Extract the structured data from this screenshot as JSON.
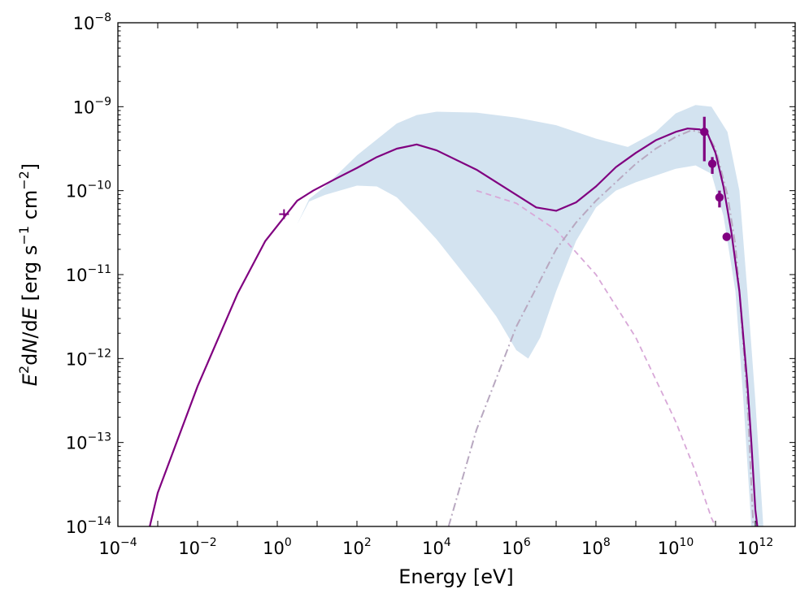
{
  "chart_data": {
    "type": "line",
    "title": "",
    "xlabel": "Energy [eV]",
    "ylabel": {
      "parts": [
        "E",
        "2",
        "d",
        "N",
        "/d",
        "E",
        " [erg s",
        "−1",
        " cm",
        "−2",
        "]"
      ]
    },
    "x_scale": "log",
    "y_scale": "log",
    "xlim_log10": [
      -4,
      13
    ],
    "ylim_log10": [
      -14,
      -8
    ],
    "x_ticks": [
      {
        "base": "10",
        "exp": "−4",
        "log10": -4
      },
      {
        "base": "10",
        "exp": "−2",
        "log10": -2
      },
      {
        "base": "10",
        "exp": "0",
        "log10": 0
      },
      {
        "base": "10",
        "exp": "2",
        "log10": 2
      },
      {
        "base": "10",
        "exp": "4",
        "log10": 4
      },
      {
        "base": "10",
        "exp": "6",
        "log10": 6
      },
      {
        "base": "10",
        "exp": "8",
        "log10": 8
      },
      {
        "base": "10",
        "exp": "10",
        "log10": 10
      },
      {
        "base": "10",
        "exp": "12",
        "log10": 12
      }
    ],
    "y_ticks": [
      {
        "base": "10",
        "exp": "−14",
        "log10": -14
      },
      {
        "base": "10",
        "exp": "−13",
        "log10": -13
      },
      {
        "base": "10",
        "exp": "−12",
        "log10": -12
      },
      {
        "base": "10",
        "exp": "−11",
        "log10": -11
      },
      {
        "base": "10",
        "exp": "−10",
        "log10": -10
      },
      {
        "base": "10",
        "exp": "−9",
        "log10": -9
      },
      {
        "base": "10",
        "exp": "−8",
        "log10": -8
      }
    ],
    "legend": "none",
    "grid": false,
    "colors": {
      "model": "#800080",
      "band": "#b5d0e6",
      "component": "#d8a8d8",
      "component_ic": "#b8a8c0"
    },
    "series": [
      {
        "name": "uncertainty band",
        "kind": "band",
        "upper_log10": [
          [
            0.5,
            -10.4
          ],
          [
            0.8,
            -10.1
          ],
          [
            1.2,
            -9.95
          ],
          [
            2.0,
            -9.58
          ],
          [
            3.0,
            -9.2
          ],
          [
            3.5,
            -9.1
          ],
          [
            4.0,
            -9.06
          ],
          [
            5.0,
            -9.07
          ],
          [
            6.0,
            -9.13
          ],
          [
            7.0,
            -9.22
          ],
          [
            8.0,
            -9.38
          ],
          [
            8.8,
            -9.48
          ],
          [
            9.5,
            -9.3
          ],
          [
            10.0,
            -9.08
          ],
          [
            10.5,
            -8.98
          ],
          [
            10.9,
            -9.0
          ],
          [
            11.3,
            -9.3
          ],
          [
            11.6,
            -10.0
          ],
          [
            11.8,
            -11.2
          ],
          [
            12.0,
            -12.5
          ],
          [
            12.2,
            -14.0
          ]
        ],
        "lower_log10": [
          [
            0.5,
            -10.4
          ],
          [
            0.8,
            -10.13
          ],
          [
            1.2,
            -10.05
          ],
          [
            2.0,
            -9.94
          ],
          [
            2.5,
            -9.95
          ],
          [
            3.0,
            -10.08
          ],
          [
            3.5,
            -10.32
          ],
          [
            4.0,
            -10.58
          ],
          [
            4.5,
            -10.88
          ],
          [
            5.0,
            -11.18
          ],
          [
            5.5,
            -11.5
          ],
          [
            6.0,
            -11.9
          ],
          [
            6.3,
            -12.0
          ],
          [
            6.6,
            -11.75
          ],
          [
            7.0,
            -11.2
          ],
          [
            7.5,
            -10.6
          ],
          [
            8.0,
            -10.2
          ],
          [
            8.5,
            -10.0
          ],
          [
            9.0,
            -9.9
          ],
          [
            9.5,
            -9.82
          ],
          [
            10.0,
            -9.74
          ],
          [
            10.5,
            -9.7
          ],
          [
            10.9,
            -9.8
          ],
          [
            11.2,
            -10.3
          ],
          [
            11.5,
            -11.2
          ],
          [
            11.7,
            -12.5
          ],
          [
            11.9,
            -14.0
          ]
        ]
      },
      {
        "name": "synchrotron component",
        "kind": "dashed",
        "points_log10": [
          [
            5.0,
            -10.0
          ],
          [
            6.0,
            -10.15
          ],
          [
            7.0,
            -10.47
          ],
          [
            8.0,
            -11.0
          ],
          [
            9.0,
            -11.75
          ],
          [
            10.0,
            -12.75
          ],
          [
            10.5,
            -13.35
          ],
          [
            10.9,
            -13.9
          ],
          [
            11.0,
            -14.0
          ]
        ]
      },
      {
        "name": "inverse Compton component",
        "kind": "dashdot",
        "points_log10": [
          [
            4.3,
            -14.0
          ],
          [
            5.0,
            -12.85
          ],
          [
            6.0,
            -11.62
          ],
          [
            7.0,
            -10.7
          ],
          [
            7.5,
            -10.38
          ],
          [
            8.0,
            -10.12
          ],
          [
            8.5,
            -9.9
          ],
          [
            9.0,
            -9.68
          ],
          [
            9.5,
            -9.5
          ],
          [
            10.0,
            -9.36
          ],
          [
            10.4,
            -9.28
          ],
          [
            10.8,
            -9.33
          ],
          [
            11.0,
            -9.5
          ],
          [
            11.3,
            -10.05
          ],
          [
            11.5,
            -10.65
          ],
          [
            11.6,
            -11.2
          ],
          [
            11.8,
            -12.5
          ],
          [
            11.95,
            -14.0
          ]
        ]
      },
      {
        "name": "total model",
        "kind": "line",
        "points_log10": [
          [
            -3.2,
            -14.0
          ],
          [
            -3.0,
            -13.6
          ],
          [
            -2.0,
            -12.33
          ],
          [
            -1.0,
            -11.23
          ],
          [
            -0.3,
            -10.6
          ],
          [
            0.2,
            -10.3
          ],
          [
            0.5,
            -10.12
          ],
          [
            0.9,
            -10.0
          ],
          [
            1.5,
            -9.85
          ],
          [
            2.0,
            -9.73
          ],
          [
            2.5,
            -9.6
          ],
          [
            3.0,
            -9.5
          ],
          [
            3.5,
            -9.45
          ],
          [
            4.0,
            -9.52
          ],
          [
            5.0,
            -9.75
          ],
          [
            6.0,
            -10.05
          ],
          [
            6.5,
            -10.2
          ],
          [
            7.0,
            -10.24
          ],
          [
            7.5,
            -10.14
          ],
          [
            8.0,
            -9.95
          ],
          [
            8.5,
            -9.72
          ],
          [
            9.0,
            -9.55
          ],
          [
            9.5,
            -9.4
          ],
          [
            10.0,
            -9.3
          ],
          [
            10.3,
            -9.26
          ],
          [
            10.6,
            -9.27
          ],
          [
            10.8,
            -9.32
          ],
          [
            11.0,
            -9.55
          ],
          [
            11.2,
            -9.95
          ],
          [
            11.4,
            -10.5
          ],
          [
            11.6,
            -11.2
          ],
          [
            11.8,
            -12.3
          ],
          [
            11.9,
            -13.0
          ],
          [
            12.0,
            -13.8
          ],
          [
            12.05,
            -14.0
          ]
        ]
      }
    ],
    "data_points": [
      {
        "name": "optical point",
        "marker": "plus",
        "x_log10": 0.17,
        "y_log10": -10.28,
        "yerr_log10": [
          0,
          0
        ]
      },
      {
        "name": "gamma point 1",
        "marker": "circle",
        "x_log10": 10.72,
        "y_log10": -9.3,
        "yerr_log10": [
          0.35,
          0.18
        ]
      },
      {
        "name": "gamma point 2",
        "marker": "circle",
        "x_log10": 10.92,
        "y_log10": -9.68,
        "yerr_log10": [
          0.12,
          0.08
        ]
      },
      {
        "name": "gamma point 3",
        "marker": "circle",
        "x_log10": 11.1,
        "y_log10": -10.08,
        "yerr_log10": [
          0.12,
          0.08
        ]
      },
      {
        "name": "gamma point 4",
        "marker": "circle",
        "x_log10": 11.28,
        "y_log10": -10.55,
        "yerr_log10": [
          0,
          0
        ]
      }
    ]
  }
}
